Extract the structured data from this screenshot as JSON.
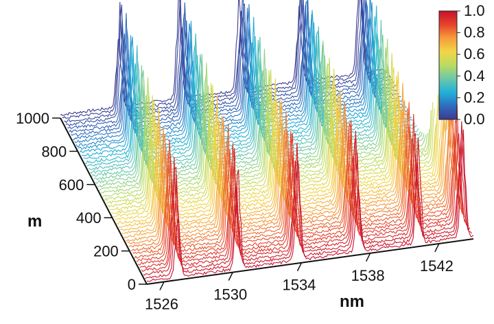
{
  "chart_data": {
    "type": "waterfall-3d",
    "xlabel": "nm",
    "ylabel": "m",
    "x_ticks": [
      "1526",
      "1530",
      "1534",
      "1538",
      "1542"
    ],
    "x_tick_values": [
      1526,
      1530,
      1534,
      1538,
      1542
    ],
    "y_ticks": [
      "0",
      "200",
      "400",
      "600",
      "800",
      "1000"
    ],
    "y_tick_values": [
      0,
      200,
      400,
      600,
      800,
      1000
    ],
    "xlim": [
      1525,
      1544
    ],
    "ylim": [
      0,
      1000
    ],
    "zlim": [
      0,
      1
    ],
    "colorbar": {
      "min": 0.0,
      "max": 1.0,
      "ticks": [
        "0.0",
        "0.2",
        "0.4",
        "0.6",
        "0.8",
        "1.0"
      ],
      "colormap": "jet-like",
      "stops": [
        "#3b3a8f",
        "#2f6cc0",
        "#21b1d9",
        "#6cc8a8",
        "#b9dc62",
        "#f2d648",
        "#f59d3b",
        "#e5432b",
        "#c8102e"
      ]
    },
    "peak_positions_nm": [
      1526.8,
      1530.3,
      1533.8,
      1537.3,
      1540.8,
      1543.4
    ],
    "peak_trend": "each peak shifts to longer wavelength and stays similar in height as m increases from 0 to 1000",
    "trace_count": 50,
    "peak_max_z": 1.0
  }
}
